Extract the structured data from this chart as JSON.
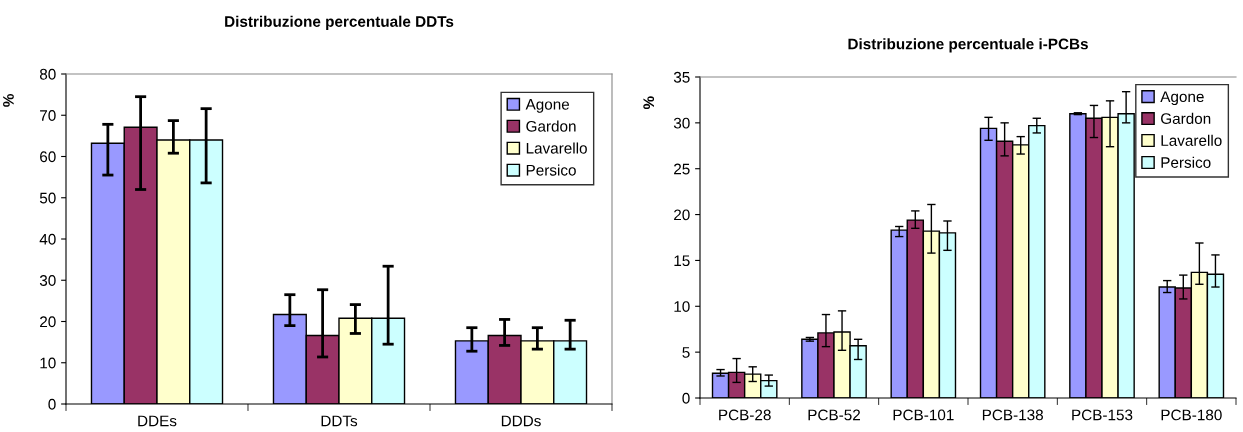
{
  "chart_data": [
    {
      "type": "bar",
      "title": "Distribuzione percentuale DDTs",
      "ylabel": "%",
      "categories": [
        "DDEs",
        "DDTs",
        "DDDs"
      ],
      "ylim": [
        0,
        80
      ],
      "yticks": [
        0,
        10,
        20,
        30,
        40,
        50,
        60,
        70,
        80
      ],
      "grid": false,
      "legend": "top right",
      "series": [
        {
          "name": "Agone",
          "color": "#9999ff",
          "values": [
            63.2,
            21.7,
            15.3
          ],
          "errors": [
            [
              55.5,
              67.8
            ],
            [
              19,
              26.5
            ],
            [
              12.8,
              18.5
            ]
          ]
        },
        {
          "name": "Gardon",
          "color": "#993366",
          "values": [
            67.1,
            16.6,
            16.6
          ],
          "errors": [
            [
              52,
              74.5
            ],
            [
              11.4,
              27.7
            ],
            [
              14.2,
              20.5
            ]
          ]
        },
        {
          "name": "Lavarello",
          "color": "#ffffcc",
          "values": [
            64,
            20.8,
            15.3
          ],
          "errors": [
            [
              60.8,
              68.7
            ],
            [
              17.1,
              24.1
            ],
            [
              13.3,
              18.5
            ]
          ]
        },
        {
          "name": "Persico",
          "color": "#ccffff",
          "values": [
            64,
            20.8,
            15.3
          ],
          "errors": [
            [
              53.6,
              71.6
            ],
            [
              14.5,
              33.4
            ],
            [
              13.3,
              20.3
            ]
          ]
        }
      ]
    },
    {
      "type": "bar",
      "title": "Distribuzione percentuale i-PCBs",
      "ylabel": "%",
      "categories": [
        "PCB-28",
        "PCB-52",
        "PCB-101",
        "PCB-138",
        "PCB-153",
        "PCB-180"
      ],
      "ylim": [
        0,
        35
      ],
      "yticks": [
        0,
        5,
        10,
        15,
        20,
        25,
        30,
        35
      ],
      "grid": false,
      "legend": "top right",
      "series": [
        {
          "name": "Agone",
          "color": "#9999ff",
          "values": [
            2.7,
            6.4,
            18.3,
            29.4,
            31.0,
            12.1
          ],
          "errors": [
            [
              2.4,
              3.1
            ],
            [
              6.2,
              6.6
            ],
            [
              17.6,
              18.7
            ],
            [
              28.1,
              30.6
            ],
            [
              30.9,
              31.1
            ],
            [
              11.5,
              12.8
            ]
          ]
        },
        {
          "name": "Gardon",
          "color": "#993366",
          "values": [
            2.8,
            7.1,
            19.4,
            28.0,
            30.5,
            12.0
          ],
          "errors": [
            [
              1.7,
              4.3
            ],
            [
              5.6,
              9.1
            ],
            [
              18.5,
              20.4
            ],
            [
              26.4,
              30.0
            ],
            [
              28.4,
              31.9
            ],
            [
              10.8,
              13.4
            ]
          ]
        },
        {
          "name": "Lavarello",
          "color": "#ffffcc",
          "values": [
            2.6,
            7.2,
            18.2,
            27.6,
            30.6,
            13.7
          ],
          "errors": [
            [
              1.8,
              3.4
            ],
            [
              5.2,
              9.5
            ],
            [
              15.8,
              21.1
            ],
            [
              26.6,
              28.5
            ],
            [
              27.4,
              32.4
            ],
            [
              12.4,
              16.9
            ]
          ]
        },
        {
          "name": "Persico",
          "color": "#ccffff",
          "values": [
            1.9,
            5.7,
            18.0,
            29.7,
            31.0,
            13.5
          ],
          "errors": [
            [
              1.3,
              2.5
            ],
            [
              4.2,
              6.4
            ],
            [
              16.1,
              19.3
            ],
            [
              28.9,
              30.5
            ],
            [
              30.0,
              33.4
            ],
            [
              12.1,
              15.6
            ]
          ]
        }
      ]
    }
  ]
}
